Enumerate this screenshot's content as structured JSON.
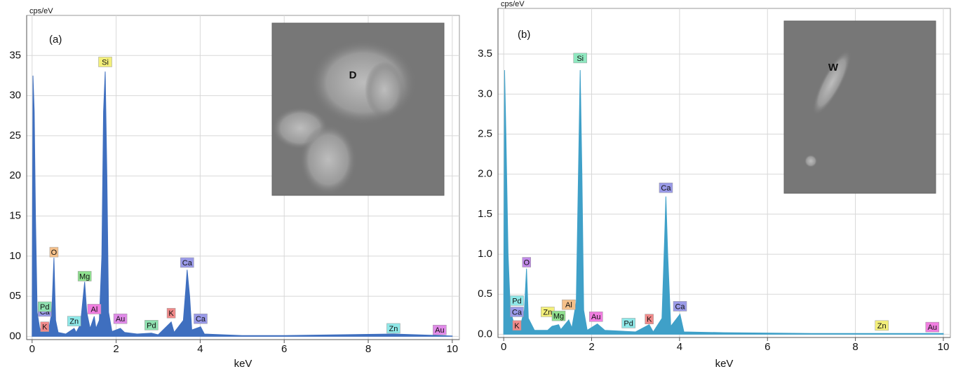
{
  "chart_data": [
    {
      "type": "area",
      "panel_label": "(a)",
      "y_label": "cps/eV",
      "x_label": "keV",
      "color": "#3f6fbf",
      "grid": true,
      "inset_label": "D",
      "xlim": [
        -0.13,
        10.17
      ],
      "ylim": [
        -0.4,
        40
      ],
      "xticks": [
        0,
        2,
        4,
        6,
        8,
        10
      ],
      "yticks": [
        {
          "value": 0,
          "label": "00"
        },
        {
          "value": 5,
          "label": "05"
        },
        10,
        15,
        20,
        25,
        30,
        35
      ],
      "x": [
        0,
        0.02,
        0.05,
        0.08,
        0.12,
        0.18,
        0.25,
        0.3,
        0.4,
        0.47,
        0.52,
        0.56,
        0.62,
        0.8,
        1.0,
        1.05,
        1.15,
        1.25,
        1.3,
        1.38,
        1.48,
        1.52,
        1.6,
        1.66,
        1.7,
        1.74,
        1.78,
        1.82,
        1.9,
        2.1,
        2.2,
        2.5,
        2.84,
        3.0,
        3.31,
        3.38,
        3.6,
        3.66,
        3.69,
        3.75,
        3.8,
        4.01,
        4.1,
        5,
        6,
        8.6,
        10
      ],
      "values": [
        0,
        32.5,
        28,
        15,
        3,
        1,
        0.5,
        1.5,
        1,
        3,
        9.8,
        2,
        0.5,
        0.3,
        1,
        0.5,
        1.5,
        6.8,
        3,
        1,
        2.5,
        1,
        2,
        10,
        28,
        33,
        20,
        3,
        0.6,
        1,
        0.5,
        0.3,
        0.4,
        0.2,
        1.8,
        0.5,
        2,
        6,
        8.3,
        5,
        0.8,
        1.2,
        0.3,
        0.1,
        0.1,
        0.3,
        0.05
      ],
      "annotations": [
        {
          "text": "Si",
          "x": 1.74,
          "y": 34.2,
          "color": "#f3ef7a"
        },
        {
          "text": "O",
          "x": 0.52,
          "y": 10.5,
          "color": "#f5c08a"
        },
        {
          "text": "Mg",
          "x": 1.25,
          "y": 7.5,
          "color": "#8fe08f"
        },
        {
          "text": "Ca",
          "x": 3.69,
          "y": 9.2,
          "color": "#9a9ae8"
        },
        {
          "text": "Ca",
          "x": 0.3,
          "y": 3.1,
          "color": "#9a9ae8"
        },
        {
          "text": "Pd",
          "x": 0.3,
          "y": 3.7,
          "color": "#8fe0b0"
        },
        {
          "text": "K",
          "x": 0.3,
          "y": 1.2,
          "color": "#f08a8a"
        },
        {
          "text": "Zn",
          "x": 1.0,
          "y": 1.9,
          "color": "#8fe8e8"
        },
        {
          "text": "Al",
          "x": 1.48,
          "y": 3.4,
          "color": "#f07ee0"
        },
        {
          "text": "Au",
          "x": 2.1,
          "y": 2.2,
          "color": "#e08ae8"
        },
        {
          "text": "Pd",
          "x": 2.84,
          "y": 1.4,
          "color": "#8fe0b0"
        },
        {
          "text": "K",
          "x": 3.31,
          "y": 2.9,
          "color": "#f08a8a"
        },
        {
          "text": "Ca",
          "x": 4.01,
          "y": 2.2,
          "color": "#9a9ae8"
        },
        {
          "text": "Zn",
          "x": 8.6,
          "y": 1.0,
          "color": "#8fe8e8"
        },
        {
          "text": "Au",
          "x": 9.7,
          "y": 0.8,
          "color": "#e08ae8"
        }
      ]
    },
    {
      "type": "area",
      "panel_label": "(b)",
      "y_label": "cps/eV",
      "x_label": "keV",
      "color": "#3fa0c8",
      "grid": true,
      "inset_label": "W",
      "xlim": [
        -0.13,
        10.16
      ],
      "ylim": [
        -0.04,
        4.07
      ],
      "xticks": [
        0,
        2,
        4,
        6,
        8,
        10
      ],
      "yticks": [
        {
          "value": 0,
          "label": "0.0"
        },
        0.5,
        {
          "value": 1,
          "label": "1.0"
        },
        1.5,
        {
          "value": 2,
          "label": "2.0"
        },
        2.5,
        {
          "value": 3,
          "label": "3.0"
        },
        3.5
      ],
      "x": [
        0,
        0.02,
        0.05,
        0.1,
        0.15,
        0.25,
        0.4,
        0.47,
        0.52,
        0.56,
        0.7,
        1.0,
        1.1,
        1.25,
        1.3,
        1.48,
        1.55,
        1.65,
        1.7,
        1.74,
        1.78,
        1.82,
        1.9,
        2.13,
        2.3,
        3.0,
        3.31,
        3.4,
        3.6,
        3.66,
        3.69,
        3.73,
        3.8,
        4.01,
        4.1,
        5,
        7,
        10
      ],
      "values": [
        0,
        3.3,
        2.5,
        1.0,
        0.3,
        0.1,
        0.15,
        0.3,
        0.82,
        0.2,
        0.05,
        0.05,
        0.1,
        0.12,
        0.06,
        0.18,
        0.08,
        0.4,
        2.0,
        3.3,
        2.0,
        0.3,
        0.05,
        0.13,
        0.05,
        0.03,
        0.12,
        0.03,
        0.2,
        1.2,
        1.72,
        1.0,
        0.1,
        0.25,
        0.03,
        0.02,
        0.01,
        0.01
      ],
      "annotations": [
        {
          "text": "Si",
          "x": 1.74,
          "y": 3.45,
          "color": "#8fe8c0"
        },
        {
          "text": "O",
          "x": 0.52,
          "y": 0.9,
          "color": "#c08ae8"
        },
        {
          "text": "Pd",
          "x": 0.3,
          "y": 0.42,
          "color": "#8fe8e8"
        },
        {
          "text": "Ca",
          "x": 0.3,
          "y": 0.28,
          "color": "#9a9ae8"
        },
        {
          "text": "K",
          "x": 0.3,
          "y": 0.11,
          "color": "#f08a8a"
        },
        {
          "text": "Zn",
          "x": 1.0,
          "y": 0.28,
          "color": "#f3ef7a"
        },
        {
          "text": "Mg",
          "x": 1.25,
          "y": 0.23,
          "color": "#8fe08f"
        },
        {
          "text": "Al",
          "x": 1.48,
          "y": 0.37,
          "color": "#f5c08a"
        },
        {
          "text": "Au",
          "x": 2.1,
          "y": 0.22,
          "color": "#f07ee0"
        },
        {
          "text": "Pd",
          "x": 2.84,
          "y": 0.14,
          "color": "#8fe8e8"
        },
        {
          "text": "K",
          "x": 3.31,
          "y": 0.19,
          "color": "#f08a8a"
        },
        {
          "text": "Ca",
          "x": 3.69,
          "y": 1.83,
          "color": "#9a9ae8"
        },
        {
          "text": "Ca",
          "x": 4.01,
          "y": 0.35,
          "color": "#9a9ae8"
        },
        {
          "text": "Zn",
          "x": 8.6,
          "y": 0.11,
          "color": "#f3ef7a"
        },
        {
          "text": "Au",
          "x": 9.75,
          "y": 0.09,
          "color": "#f07ee0"
        }
      ]
    }
  ]
}
